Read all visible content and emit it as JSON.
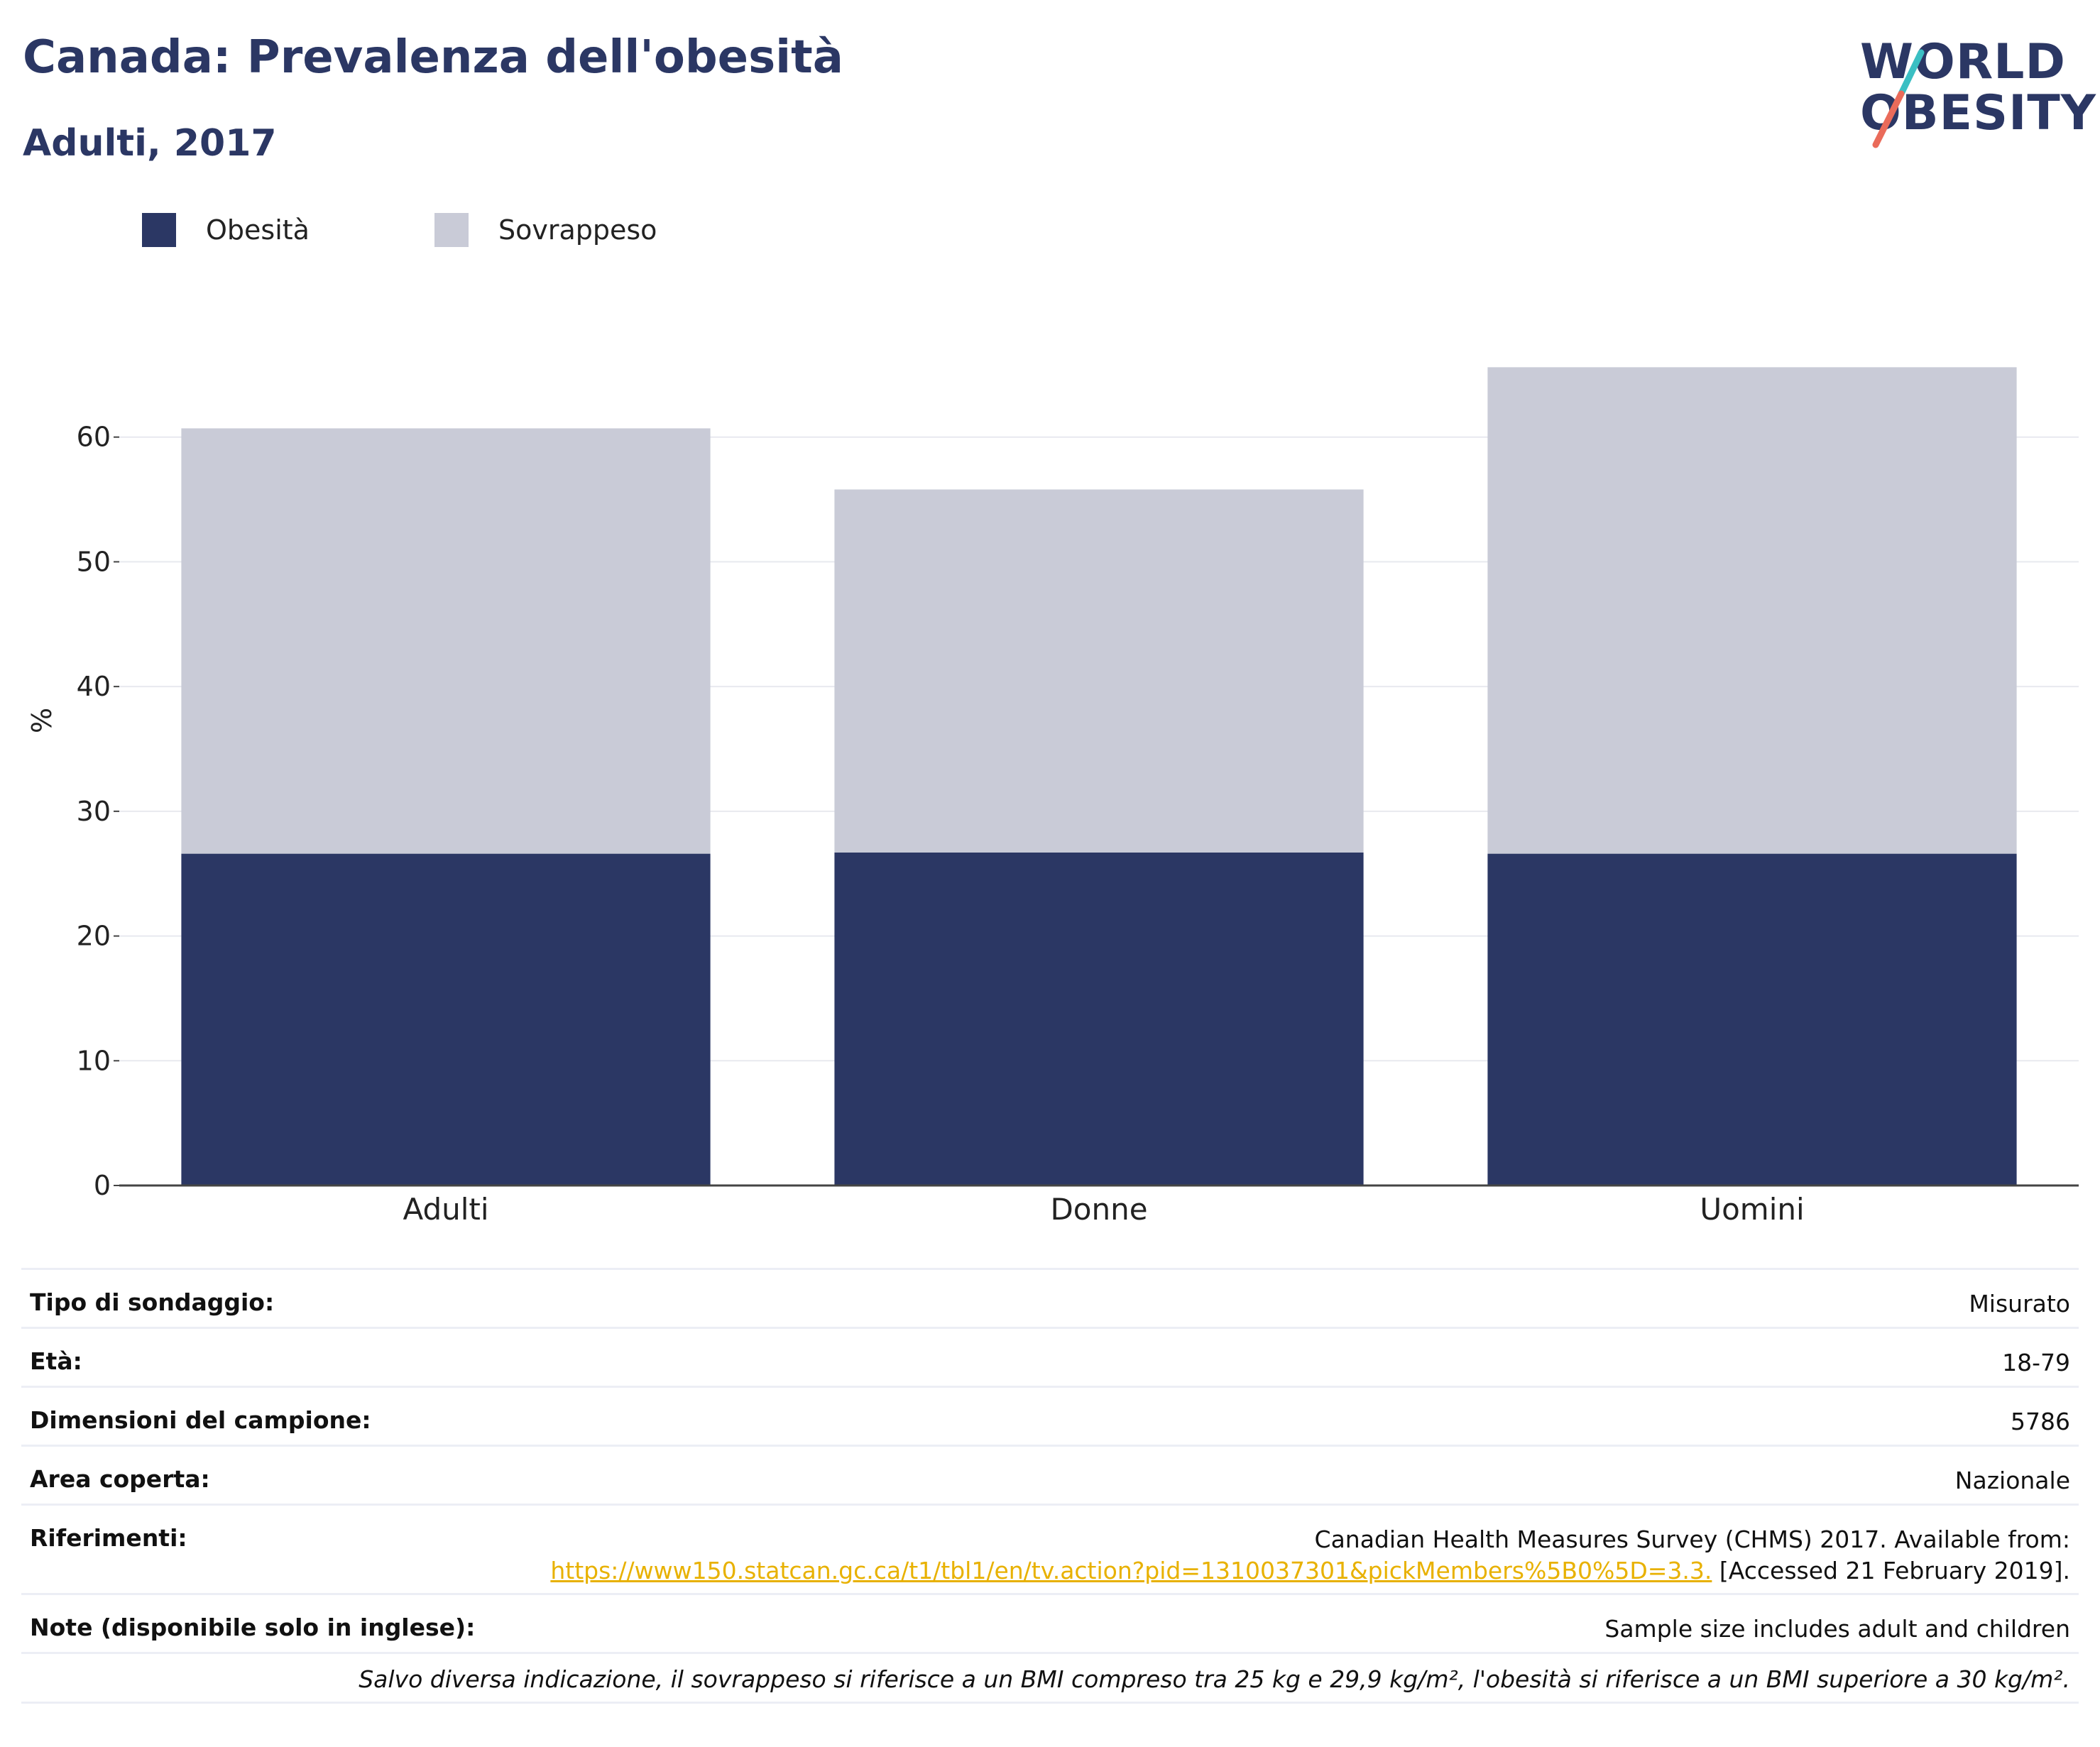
{
  "header": {
    "title": "Canada: Prevalenza dell'obesità",
    "subtitle": "Adulti, 2017",
    "logo_line1": "WORLD",
    "logo_line2": "OBESITY"
  },
  "colors": {
    "obesity": "#2b3764",
    "overweight": "#c9cbd7",
    "title": "#2b3764",
    "logo_teal": "#3bbfc3",
    "logo_coral": "#ea6b5a",
    "link": "#e8b100"
  },
  "chart_data": {
    "type": "bar",
    "stacked": true,
    "categories": [
      "Adulti",
      "Donne",
      "Uomini"
    ],
    "series": [
      {
        "name": "Obesità",
        "values": [
          26.6,
          26.7,
          26.6
        ]
      },
      {
        "name": "Sovrappeso",
        "values": [
          34.1,
          29.1,
          39.0
        ]
      }
    ],
    "title": "Canada: Prevalenza dell'obesità",
    "subtitle": "Adulti, 2017",
    "xlabel": "",
    "ylabel": "%",
    "ylim": [
      0,
      70
    ],
    "yticks": [
      0,
      10,
      20,
      30,
      40,
      50,
      60
    ],
    "grid": true,
    "legend": "top-left"
  },
  "info": {
    "rows": [
      {
        "label": "Tipo di sondaggio:",
        "value": "Misurato"
      },
      {
        "label": "Età:",
        "value": "18-79"
      },
      {
        "label": "Dimensioni del campione:",
        "value": "5786"
      },
      {
        "label": "Area coperta:",
        "value": "Nazionale"
      }
    ],
    "references": {
      "label": "Riferimenti:",
      "text": "Canadian Health Measures Survey (CHMS) 2017. Available from:",
      "url": "https://www150.statcan.gc.ca/t1/tbl1/en/tv.action?pid=1310037301&pickMembers%5B0%5D=3.3.",
      "accessed": "[Accessed 21 February 2019]."
    },
    "notes": {
      "label": "Note (disponibile solo in inglese):",
      "value": "Sample size includes adult and children"
    },
    "footnote": "Salvo diversa indicazione, il sovrappeso si riferisce a un BMI compreso tra 25 kg e 29,9 kg/m², l'obesità si riferisce a un BMI superiore a 30 kg/m²."
  }
}
